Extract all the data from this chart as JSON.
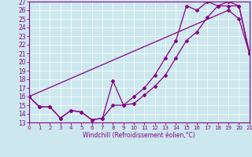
{
  "xlabel": "Windchill (Refroidissement éolien,°C)",
  "bg_color": "#cce8ee",
  "line_color": "#880088",
  "xlim": [
    0,
    21
  ],
  "ylim": [
    13,
    27
  ],
  "xticks": [
    0,
    1,
    2,
    3,
    4,
    5,
    6,
    7,
    8,
    9,
    10,
    11,
    12,
    13,
    14,
    15,
    16,
    17,
    18,
    19,
    20,
    21
  ],
  "yticks": [
    13,
    14,
    15,
    16,
    17,
    18,
    19,
    20,
    21,
    22,
    23,
    24,
    25,
    26,
    27
  ],
  "line1_x": [
    0,
    1,
    2,
    3,
    4,
    5,
    6,
    7,
    8,
    9,
    10,
    11,
    12,
    13,
    14,
    15,
    16,
    17,
    18,
    19,
    20,
    21
  ],
  "line1_y": [
    16.0,
    14.8,
    14.8,
    13.5,
    14.4,
    14.2,
    13.3,
    13.5,
    17.8,
    15.0,
    15.2,
    16.2,
    17.2,
    18.5,
    20.5,
    22.5,
    23.5,
    25.2,
    26.5,
    27.0,
    26.5,
    21.0
  ],
  "line2_x": [
    0,
    1,
    2,
    3,
    4,
    5,
    6,
    7,
    8,
    9,
    10,
    11,
    12,
    13,
    14,
    15,
    16,
    17,
    18,
    19,
    20,
    21
  ],
  "line2_y": [
    16.0,
    14.8,
    14.8,
    13.5,
    14.4,
    14.2,
    13.3,
    13.5,
    15.0,
    15.0,
    16.0,
    17.0,
    18.5,
    20.5,
    22.5,
    26.5,
    26.0,
    27.0,
    26.5,
    26.5,
    26.5,
    21.0
  ],
  "line3_x": [
    0,
    19,
    20,
    21
  ],
  "line3_y": [
    16.0,
    26.0,
    25.0,
    21.0
  ]
}
